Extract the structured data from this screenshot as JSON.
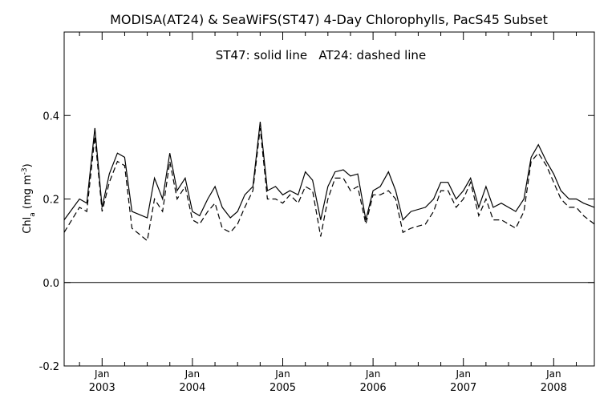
{
  "chart_data": {
    "type": "line",
    "title": "MODISA(AT24) & SeaWiFS(ST47) 4-Day Chlorophylls, PacS45 Subset",
    "annotation": "ST47: solid line   AT24: dashed line",
    "ylabel": "Chl",
    "ylabel_subscript": "a",
    "ylabel_units": " (mg m",
    "ylabel_units_sup": "-3",
    "ylabel_units_close": ")",
    "xlim": [
      2002.58,
      2008.45
    ],
    "ylim": [
      -0.2,
      0.6
    ],
    "y_ticks": [
      -0.2,
      0.0,
      0.2,
      0.4
    ],
    "y_tick_labels": [
      "-0.2",
      "0.0",
      "0.2",
      "0.4"
    ],
    "x_ticks": [
      {
        "x": 2003.0,
        "top": "Jan",
        "bottom": "2003"
      },
      {
        "x": 2004.0,
        "top": "Jan",
        "bottom": "2004"
      },
      {
        "x": 2005.0,
        "top": "Jan",
        "bottom": "2005"
      },
      {
        "x": 2006.0,
        "top": "Jan",
        "bottom": "2006"
      },
      {
        "x": 2007.0,
        "top": "Jan",
        "bottom": "2007"
      },
      {
        "x": 2008.0,
        "top": "Jan",
        "bottom": "2008"
      }
    ],
    "x_minor_ticks": [
      2002.75,
      2003.25,
      2003.5,
      2003.75,
      2004.25,
      2004.5,
      2004.75,
      2005.25,
      2005.5,
      2005.75,
      2006.25,
      2006.5,
      2006.75,
      2007.25,
      2007.5,
      2007.75,
      2008.25
    ],
    "reference_line": 0.0,
    "grid": false,
    "series": [
      {
        "name": "ST47",
        "style": "solid",
        "x": [
          2002.58,
          2002.75,
          2002.83,
          2002.92,
          2003.0,
          2003.08,
          2003.17,
          2003.25,
          2003.33,
          2003.5,
          2003.58,
          2003.67,
          2003.75,
          2003.83,
          2003.92,
          2004.0,
          2004.08,
          2004.17,
          2004.25,
          2004.33,
          2004.42,
          2004.5,
          2004.58,
          2004.67,
          2004.75,
          2004.83,
          2004.92,
          2005.0,
          2005.08,
          2005.17,
          2005.25,
          2005.33,
          2005.42,
          2005.5,
          2005.58,
          2005.67,
          2005.75,
          2005.83,
          2005.92,
          2006.0,
          2006.08,
          2006.17,
          2006.25,
          2006.33,
          2006.42,
          2006.58,
          2006.67,
          2006.75,
          2006.83,
          2006.92,
          2007.0,
          2007.08,
          2007.17,
          2007.25,
          2007.33,
          2007.42,
          2007.58,
          2007.67,
          2007.75,
          2007.83,
          2007.92,
          2008.0,
          2008.08,
          2008.17,
          2008.25,
          2008.33,
          2008.45
        ],
        "y": [
          0.15,
          0.2,
          0.19,
          0.37,
          0.18,
          0.26,
          0.31,
          0.3,
          0.17,
          0.155,
          0.25,
          0.2,
          0.31,
          0.22,
          0.25,
          0.17,
          0.16,
          0.2,
          0.23,
          0.18,
          0.155,
          0.17,
          0.21,
          0.23,
          0.385,
          0.22,
          0.23,
          0.21,
          0.22,
          0.21,
          0.265,
          0.245,
          0.15,
          0.23,
          0.265,
          0.27,
          0.255,
          0.26,
          0.15,
          0.22,
          0.23,
          0.265,
          0.22,
          0.15,
          0.17,
          0.18,
          0.2,
          0.24,
          0.24,
          0.2,
          0.22,
          0.25,
          0.18,
          0.23,
          0.18,
          0.19,
          0.17,
          0.2,
          0.3,
          0.33,
          0.29,
          0.26,
          0.22,
          0.2,
          0.2,
          0.19,
          0.18
        ]
      },
      {
        "name": "AT24",
        "style": "dashed",
        "x": [
          2002.58,
          2002.75,
          2002.83,
          2002.92,
          2003.0,
          2003.08,
          2003.17,
          2003.25,
          2003.33,
          2003.5,
          2003.58,
          2003.67,
          2003.75,
          2003.83,
          2003.92,
          2004.0,
          2004.08,
          2004.17,
          2004.25,
          2004.33,
          2004.42,
          2004.5,
          2004.58,
          2004.67,
          2004.75,
          2004.83,
          2004.92,
          2005.0,
          2005.08,
          2005.17,
          2005.25,
          2005.33,
          2005.42,
          2005.5,
          2005.58,
          2005.67,
          2005.75,
          2005.83,
          2005.92,
          2006.0,
          2006.08,
          2006.17,
          2006.25,
          2006.33,
          2006.42,
          2006.58,
          2006.67,
          2006.75,
          2006.83,
          2006.92,
          2007.0,
          2007.08,
          2007.17,
          2007.25,
          2007.33,
          2007.42,
          2007.58,
          2007.67,
          2007.75,
          2007.83,
          2007.92,
          2008.0,
          2008.08,
          2008.17,
          2008.25,
          2008.33,
          2008.45
        ],
        "y": [
          0.12,
          0.18,
          0.17,
          0.35,
          0.17,
          0.24,
          0.29,
          0.28,
          0.13,
          0.1,
          0.2,
          0.17,
          0.29,
          0.2,
          0.23,
          0.15,
          0.14,
          0.17,
          0.19,
          0.13,
          0.12,
          0.14,
          0.18,
          0.22,
          0.37,
          0.2,
          0.2,
          0.19,
          0.21,
          0.19,
          0.23,
          0.22,
          0.11,
          0.2,
          0.25,
          0.25,
          0.22,
          0.23,
          0.14,
          0.21,
          0.21,
          0.22,
          0.2,
          0.12,
          0.13,
          0.14,
          0.17,
          0.22,
          0.22,
          0.18,
          0.2,
          0.24,
          0.16,
          0.2,
          0.15,
          0.15,
          0.13,
          0.17,
          0.29,
          0.31,
          0.28,
          0.24,
          0.2,
          0.18,
          0.18,
          0.16,
          0.14
        ]
      }
    ]
  }
}
